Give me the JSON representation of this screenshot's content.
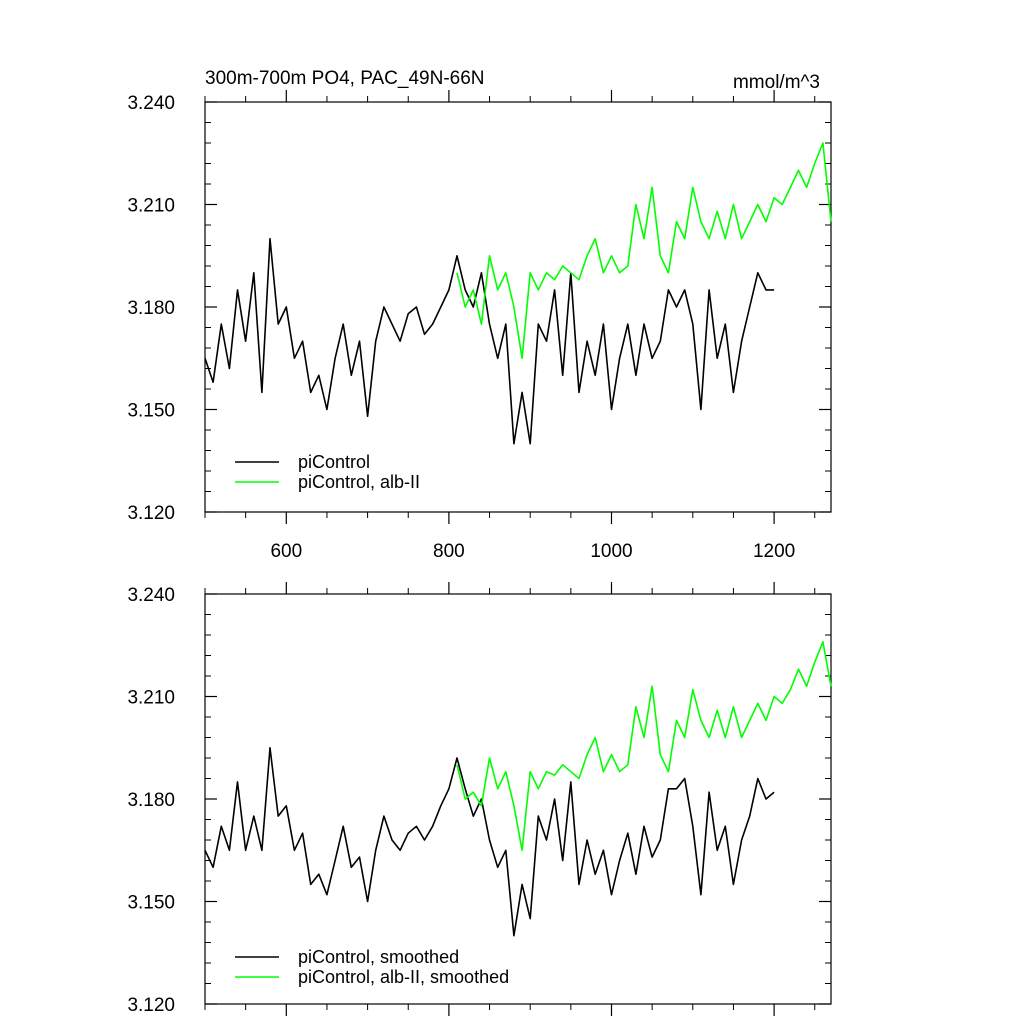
{
  "chart_data": [
    {
      "type": "line",
      "title": "300m-700m PO4, PAC_49N-66N",
      "units": "mmol/m^3",
      "xlim": [
        500,
        1270
      ],
      "ylim": [
        3.12,
        3.24
      ],
      "xticks": [
        600,
        800,
        1000,
        1200
      ],
      "xtick_labels": [
        "600",
        "800",
        "1000",
        "1200"
      ],
      "yticks": [
        3.12,
        3.15,
        3.18,
        3.21,
        3.24
      ],
      "ytick_labels": [
        "3.120",
        "3.150",
        "3.180",
        "3.210",
        "3.240"
      ],
      "legend_position": "bottom-left",
      "series": [
        {
          "name": "piControl",
          "color": "#000000",
          "x": [
            500,
            510,
            520,
            530,
            540,
            550,
            560,
            570,
            580,
            590,
            600,
            610,
            620,
            630,
            640,
            650,
            660,
            670,
            680,
            690,
            700,
            710,
            720,
            730,
            740,
            750,
            760,
            770,
            780,
            790,
            800,
            810,
            820,
            830,
            840,
            850,
            860,
            870,
            880,
            890,
            900,
            910,
            920,
            930,
            940,
            950,
            960,
            970,
            980,
            990,
            1000,
            1010,
            1020,
            1030,
            1040,
            1050,
            1060,
            1070,
            1080,
            1090,
            1100,
            1110,
            1120,
            1130,
            1140,
            1150,
            1160,
            1170,
            1180,
            1190,
            1200
          ],
          "values": [
            3.165,
            3.158,
            3.175,
            3.162,
            3.185,
            3.17,
            3.19,
            3.155,
            3.2,
            3.175,
            3.18,
            3.165,
            3.17,
            3.155,
            3.16,
            3.15,
            3.165,
            3.175,
            3.16,
            3.17,
            3.148,
            3.17,
            3.18,
            3.175,
            3.17,
            3.178,
            3.18,
            3.172,
            3.175,
            3.18,
            3.185,
            3.195,
            3.185,
            3.18,
            3.19,
            3.175,
            3.165,
            3.175,
            3.14,
            3.155,
            3.14,
            3.175,
            3.17,
            3.185,
            3.16,
            3.19,
            3.155,
            3.17,
            3.16,
            3.175,
            3.15,
            3.165,
            3.175,
            3.16,
            3.175,
            3.165,
            3.17,
            3.185,
            3.18,
            3.185,
            3.175,
            3.15,
            3.185,
            3.165,
            3.175,
            3.155,
            3.17,
            3.18,
            3.19,
            3.185,
            3.185
          ]
        },
        {
          "name": "piControl, alb-II",
          "color": "#00ff00",
          "x": [
            810,
            820,
            830,
            840,
            850,
            860,
            870,
            880,
            890,
            900,
            910,
            920,
            930,
            940,
            950,
            960,
            970,
            980,
            990,
            1000,
            1010,
            1020,
            1030,
            1040,
            1050,
            1060,
            1070,
            1080,
            1090,
            1100,
            1110,
            1120,
            1130,
            1140,
            1150,
            1160,
            1170,
            1180,
            1190,
            1200,
            1210,
            1220,
            1230,
            1240,
            1250,
            1260,
            1270
          ],
          "values": [
            3.19,
            3.18,
            3.185,
            3.175,
            3.195,
            3.185,
            3.19,
            3.18,
            3.165,
            3.19,
            3.185,
            3.19,
            3.188,
            3.192,
            3.19,
            3.188,
            3.195,
            3.2,
            3.19,
            3.195,
            3.19,
            3.192,
            3.21,
            3.2,
            3.215,
            3.195,
            3.19,
            3.205,
            3.2,
            3.215,
            3.205,
            3.2,
            3.208,
            3.2,
            3.21,
            3.2,
            3.205,
            3.21,
            3.205,
            3.212,
            3.21,
            3.215,
            3.22,
            3.215,
            3.222,
            3.228,
            3.205
          ]
        }
      ]
    },
    {
      "type": "line",
      "title": "",
      "units": "",
      "xlim": [
        500,
        1270
      ],
      "ylim": [
        3.12,
        3.24
      ],
      "xticks": [
        600,
        800,
        1000,
        1200
      ],
      "xtick_labels": [],
      "yticks": [
        3.12,
        3.15,
        3.18,
        3.21,
        3.24
      ],
      "ytick_labels": [
        "3.120",
        "3.150",
        "3.180",
        "3.210",
        "3.240"
      ],
      "legend_position": "bottom-left",
      "series": [
        {
          "name": "piControl, smoothed",
          "color": "#000000",
          "x": [
            500,
            510,
            520,
            530,
            540,
            550,
            560,
            570,
            580,
            590,
            600,
            610,
            620,
            630,
            640,
            650,
            660,
            670,
            680,
            690,
            700,
            710,
            720,
            730,
            740,
            750,
            760,
            770,
            780,
            790,
            800,
            810,
            820,
            830,
            840,
            850,
            860,
            870,
            880,
            890,
            900,
            910,
            920,
            930,
            940,
            950,
            960,
            970,
            980,
            990,
            1000,
            1010,
            1020,
            1030,
            1040,
            1050,
            1060,
            1070,
            1080,
            1090,
            1100,
            1110,
            1120,
            1130,
            1140,
            1150,
            1160,
            1170,
            1180,
            1190,
            1200
          ],
          "values": [
            3.165,
            3.16,
            3.172,
            3.165,
            3.185,
            3.165,
            3.175,
            3.165,
            3.195,
            3.175,
            3.178,
            3.165,
            3.17,
            3.155,
            3.158,
            3.152,
            3.162,
            3.172,
            3.16,
            3.163,
            3.15,
            3.165,
            3.175,
            3.168,
            3.165,
            3.17,
            3.172,
            3.168,
            3.172,
            3.178,
            3.183,
            3.192,
            3.183,
            3.175,
            3.18,
            3.168,
            3.16,
            3.165,
            3.14,
            3.155,
            3.145,
            3.175,
            3.168,
            3.18,
            3.162,
            3.185,
            3.155,
            3.168,
            3.158,
            3.165,
            3.152,
            3.162,
            3.17,
            3.158,
            3.172,
            3.163,
            3.168,
            3.183,
            3.183,
            3.186,
            3.172,
            3.152,
            3.182,
            3.165,
            3.172,
            3.155,
            3.168,
            3.175,
            3.186,
            3.18,
            3.182
          ]
        },
        {
          "name": "piControl, alb-II, smoothed",
          "color": "#00ff00",
          "x": [
            810,
            820,
            830,
            840,
            850,
            860,
            870,
            880,
            890,
            900,
            910,
            920,
            930,
            940,
            950,
            960,
            970,
            980,
            990,
            1000,
            1010,
            1020,
            1030,
            1040,
            1050,
            1060,
            1070,
            1080,
            1090,
            1100,
            1110,
            1120,
            1130,
            1140,
            1150,
            1160,
            1170,
            1180,
            1190,
            1200,
            1210,
            1220,
            1230,
            1240,
            1250,
            1260,
            1270
          ],
          "values": [
            3.19,
            3.18,
            3.182,
            3.178,
            3.192,
            3.183,
            3.188,
            3.178,
            3.165,
            3.188,
            3.183,
            3.188,
            3.187,
            3.19,
            3.188,
            3.186,
            3.193,
            3.198,
            3.188,
            3.193,
            3.188,
            3.19,
            3.207,
            3.198,
            3.213,
            3.193,
            3.188,
            3.203,
            3.198,
            3.212,
            3.203,
            3.198,
            3.206,
            3.198,
            3.207,
            3.198,
            3.203,
            3.208,
            3.203,
            3.21,
            3.208,
            3.212,
            3.218,
            3.213,
            3.22,
            3.226,
            3.213
          ]
        }
      ]
    }
  ]
}
